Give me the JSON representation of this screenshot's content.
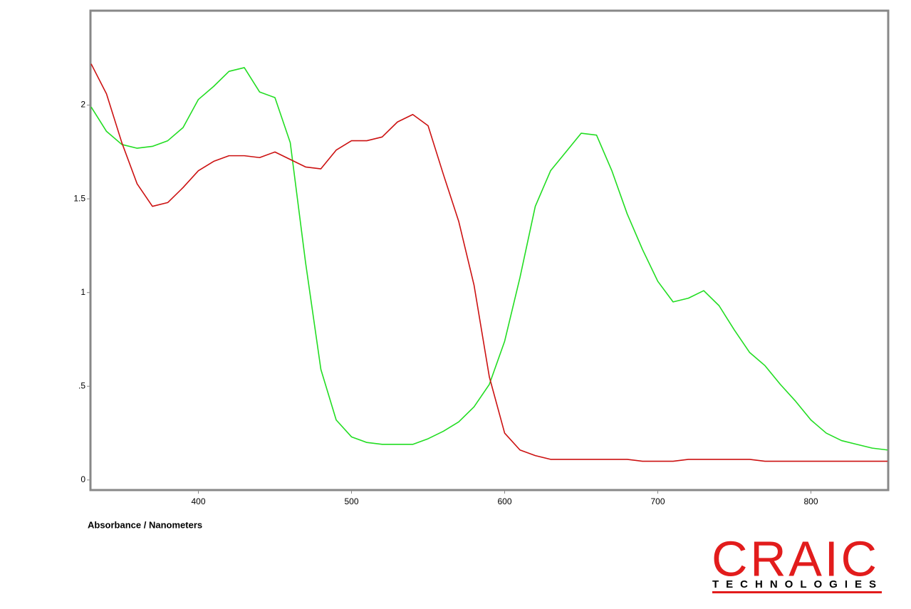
{
  "chart_data": {
    "type": "line",
    "xlabel": "Absorbance / Nanometers",
    "x": [
      330,
      340,
      350,
      360,
      370,
      380,
      390,
      400,
      410,
      420,
      430,
      440,
      450,
      460,
      470,
      480,
      490,
      500,
      510,
      520,
      530,
      540,
      550,
      560,
      570,
      580,
      590,
      600,
      610,
      620,
      630,
      640,
      650,
      660,
      670,
      680,
      690,
      700,
      710,
      720,
      730,
      740,
      750,
      760,
      770,
      780,
      790,
      800,
      810,
      820,
      830,
      840,
      850
    ],
    "series": [
      {
        "color": "#22dd22",
        "values": [
          1.99,
          1.86,
          1.79,
          1.77,
          1.78,
          1.81,
          1.88,
          2.03,
          2.1,
          2.18,
          2.2,
          2.07,
          2.04,
          1.8,
          1.16,
          0.59,
          0.32,
          0.23,
          0.2,
          0.19,
          0.19,
          0.19,
          0.22,
          0.26,
          0.31,
          0.39,
          0.51,
          0.74,
          1.08,
          1.46,
          1.65,
          1.75,
          1.85,
          1.84,
          1.65,
          1.42,
          1.23,
          1.06,
          0.95,
          0.97,
          1.01,
          0.93,
          0.8,
          0.68,
          0.61,
          0.51,
          0.42,
          0.32,
          0.25,
          0.21,
          0.19,
          0.17,
          0.16
        ]
      },
      {
        "color": "#cc1111",
        "values": [
          2.22,
          2.06,
          1.8,
          1.58,
          1.46,
          1.48,
          1.56,
          1.65,
          1.7,
          1.73,
          1.73,
          1.72,
          1.75,
          1.71,
          1.67,
          1.66,
          1.76,
          1.81,
          1.81,
          1.83,
          1.91,
          1.95,
          1.89,
          1.63,
          1.38,
          1.04,
          0.55,
          0.25,
          0.16,
          0.13,
          0.11,
          0.11,
          0.11,
          0.11,
          0.11,
          0.11,
          0.1,
          0.1,
          0.1,
          0.11,
          0.11,
          0.11,
          0.11,
          0.11,
          0.1,
          0.1,
          0.1,
          0.1,
          0.1,
          0.1,
          0.1,
          0.1,
          0.1
        ]
      }
    ],
    "xlim": [
      330,
      850
    ],
    "ylim": [
      -0.05,
      2.5
    ],
    "xticks": [
      400,
      500,
      600,
      700,
      800
    ],
    "yticks": [
      0,
      {
        "value": 0.5,
        "label": ".5"
      },
      1,
      1.5,
      2
    ]
  },
  "logo": {
    "name": "CRAIC",
    "tagline": "TECHNOLOGIES"
  }
}
